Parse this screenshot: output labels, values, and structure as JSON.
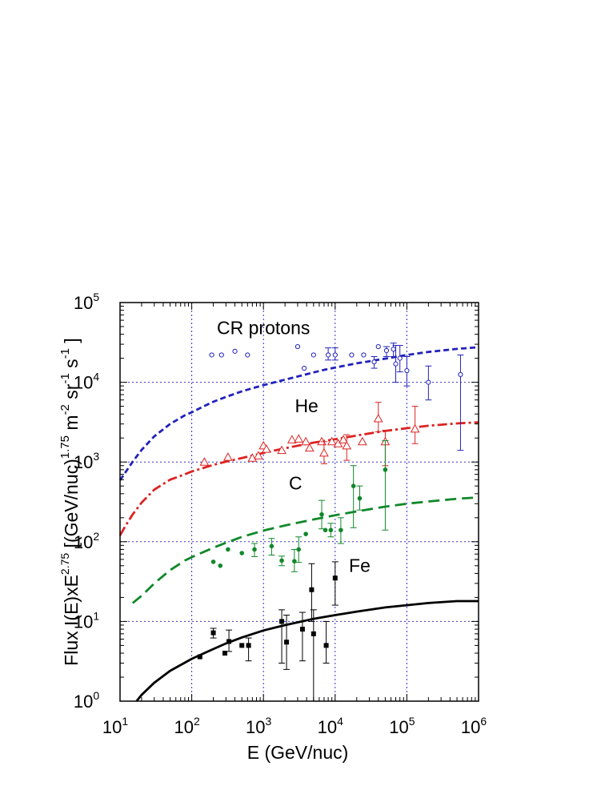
{
  "chart_data": {
    "type": "scatter",
    "x_scale": "log",
    "y_scale": "log",
    "xlim": [
      10,
      1000000
    ],
    "ylim": [
      1,
      100000
    ],
    "grid": true,
    "xlabel": "E (GeV/nuc)",
    "ylabel_parts": {
      "main": "Flux I(E)xE",
      "exp": "2.75",
      "bracket_open": " [(GeV/nuc)",
      "exp2": "1.75",
      "m": " m",
      "exp3": "-2",
      "sr": " sr",
      "exp4": "-1",
      "s": " s",
      "exp5": "-1",
      "bracket_close": " ]"
    },
    "x_ticks": [
      {
        "base": "10",
        "exp": "1"
      },
      {
        "base": "10",
        "exp": "2"
      },
      {
        "base": "10",
        "exp": "3"
      },
      {
        "base": "10",
        "exp": "4"
      },
      {
        "base": "10",
        "exp": "5"
      },
      {
        "base": "10",
        "exp": "6"
      }
    ],
    "y_ticks": [
      {
        "base": "10",
        "exp": "0"
      },
      {
        "base": "10",
        "exp": "1"
      },
      {
        "base": "10",
        "exp": "2"
      },
      {
        "base": "10",
        "exp": "3"
      },
      {
        "base": "10",
        "exp": "4"
      },
      {
        "base": "10",
        "exp": "5"
      }
    ],
    "annotations": [
      {
        "text": "CR protons",
        "series": "protons"
      },
      {
        "text": "He",
        "series": "helium"
      },
      {
        "text": "C",
        "series": "carbon"
      },
      {
        "text": "Fe",
        "series": "iron"
      }
    ],
    "series": [
      {
        "key": "protons",
        "color": "#2222bb",
        "marker": "open-circle",
        "curve_style": "short-dash",
        "curve": [
          [
            10,
            590
          ],
          [
            12,
            750
          ],
          [
            15,
            1010
          ],
          [
            20,
            1420
          ],
          [
            30,
            2100
          ],
          [
            50,
            3000
          ],
          [
            80,
            3850
          ],
          [
            100,
            4200
          ],
          [
            150,
            5050
          ],
          [
            200,
            5700
          ],
          [
            300,
            6550
          ],
          [
            500,
            7700
          ],
          [
            700,
            8400
          ],
          [
            1000,
            9200
          ],
          [
            2000,
            10800
          ],
          [
            3000,
            11800
          ],
          [
            5000,
            13300
          ],
          [
            7000,
            14300
          ],
          [
            10000,
            15300
          ],
          [
            20000,
            17300
          ],
          [
            50000,
            19800
          ],
          [
            100000,
            22000
          ],
          [
            200000,
            24000
          ],
          [
            500000,
            26200
          ],
          [
            1000000,
            27500
          ]
        ],
        "points": [
          {
            "x": 190,
            "y": 22000
          },
          {
            "x": 260,
            "y": 22000
          },
          {
            "x": 400,
            "y": 24500
          },
          {
            "x": 600,
            "y": 22000
          },
          {
            "x": 3000,
            "y": 28000
          },
          {
            "x": 3700,
            "y": 15000
          },
          {
            "x": 5000,
            "y": 22000
          },
          {
            "x": 8000,
            "y": 22000,
            "lo": 19000,
            "hi": 27000
          },
          {
            "x": 10000,
            "y": 22000,
            "lo": 19000,
            "hi": 27000
          },
          {
            "x": 17000,
            "y": 22000
          },
          {
            "x": 25000,
            "y": 22000
          },
          {
            "x": 35000,
            "y": 18000,
            "lo": 15000,
            "hi": 21000
          },
          {
            "x": 40000,
            "y": 28000
          },
          {
            "x": 52000,
            "y": 25000,
            "lo": 21000,
            "hi": 28000
          },
          {
            "x": 65000,
            "y": 26000,
            "lo": 21000,
            "hi": 31000
          },
          {
            "x": 70000,
            "y": 17000,
            "lo": 10000,
            "hi": 29000
          },
          {
            "x": 80000,
            "y": 20000,
            "lo": 13500,
            "hi": 29000
          },
          {
            "x": 100000,
            "y": 14000,
            "lo": 9000,
            "hi": 21000
          },
          {
            "x": 200000,
            "y": 10000,
            "lo": 6000,
            "hi": 16000
          },
          {
            "x": 560000,
            "y": 12500,
            "lo": 1400,
            "hi": 22000
          }
        ]
      },
      {
        "key": "helium",
        "color": "#dd2222",
        "marker": "open-triangle",
        "curve_style": "dash-dot",
        "curve": [
          [
            10,
            120
          ],
          [
            12,
            160
          ],
          [
            15,
            220
          ],
          [
            20,
            310
          ],
          [
            30,
            450
          ],
          [
            50,
            600
          ],
          [
            80,
            700
          ],
          [
            100,
            760
          ],
          [
            200,
            920
          ],
          [
            300,
            1010
          ],
          [
            500,
            1120
          ],
          [
            1000,
            1300
          ],
          [
            2000,
            1490
          ],
          [
            5000,
            1750
          ],
          [
            10000,
            1930
          ],
          [
            20000,
            2150
          ],
          [
            50000,
            2450
          ],
          [
            100000,
            2650
          ],
          [
            200000,
            2850
          ],
          [
            500000,
            3050
          ],
          [
            1000000,
            3150
          ]
        ],
        "points": [
          {
            "x": 150,
            "y": 1000
          },
          {
            "x": 320,
            "y": 1150
          },
          {
            "x": 700,
            "y": 1120
          },
          {
            "x": 850,
            "y": 1200
          },
          {
            "x": 1000,
            "y": 1600
          },
          {
            "x": 1100,
            "y": 1450
          },
          {
            "x": 1800,
            "y": 1400
          },
          {
            "x": 2500,
            "y": 1900
          },
          {
            "x": 3100,
            "y": 1950
          },
          {
            "x": 3900,
            "y": 1800
          },
          {
            "x": 4400,
            "y": 1500
          },
          {
            "x": 6500,
            "y": 1800
          },
          {
            "x": 7000,
            "y": 1300,
            "lo": 950,
            "hi": 1800
          },
          {
            "x": 9000,
            "y": 1800
          },
          {
            "x": 11000,
            "y": 1700
          },
          {
            "x": 13000,
            "y": 1900
          },
          {
            "x": 14500,
            "y": 1600,
            "lo": 1050,
            "hi": 2200
          },
          {
            "x": 24000,
            "y": 1800
          },
          {
            "x": 40000,
            "y": 3500,
            "lo": 2400,
            "hi": 5600
          },
          {
            "x": 50000,
            "y": 1800,
            "lo": 900,
            "hi": 2500
          },
          {
            "x": 130000,
            "y": 2600,
            "lo": 1700,
            "hi": 5000
          }
        ]
      },
      {
        "key": "carbon",
        "color": "#11882a",
        "marker": "filled-circle",
        "curve_style": "long-dash",
        "curve": [
          [
            15,
            17
          ],
          [
            20,
            21
          ],
          [
            30,
            30
          ],
          [
            50,
            44
          ],
          [
            80,
            58
          ],
          [
            100,
            64
          ],
          [
            200,
            84
          ],
          [
            300,
            97
          ],
          [
            500,
            115
          ],
          [
            1000,
            138
          ],
          [
            2000,
            160
          ],
          [
            5000,
            190
          ],
          [
            10000,
            215
          ],
          [
            20000,
            240
          ],
          [
            50000,
            275
          ],
          [
            100000,
            300
          ],
          [
            200000,
            320
          ],
          [
            500000,
            345
          ],
          [
            1000000,
            360
          ]
        ],
        "points": [
          {
            "x": 200,
            "y": 56
          },
          {
            "x": 250,
            "y": 50
          },
          {
            "x": 320,
            "y": 80
          },
          {
            "x": 500,
            "y": 72
          },
          {
            "x": 750,
            "y": 80,
            "lo": 65,
            "hi": 95
          },
          {
            "x": 1300,
            "y": 88,
            "lo": 68,
            "hi": 110
          },
          {
            "x": 1800,
            "y": 58,
            "lo": 50,
            "hi": 66
          },
          {
            "x": 2700,
            "y": 57,
            "lo": 42,
            "hi": 80
          },
          {
            "x": 3100,
            "y": 80,
            "lo": 55,
            "hi": 115
          },
          {
            "x": 3900,
            "y": 125
          },
          {
            "x": 6500,
            "y": 220,
            "lo": 145,
            "hi": 330
          },
          {
            "x": 7300,
            "y": 140
          },
          {
            "x": 8700,
            "y": 140,
            "lo": 115,
            "hi": 170
          },
          {
            "x": 12000,
            "y": 140,
            "lo": 95,
            "hi": 200
          },
          {
            "x": 18000,
            "y": 500,
            "lo": 150,
            "hi": 900
          },
          {
            "x": 22000,
            "y": 350,
            "lo": 250,
            "hi": 500
          },
          {
            "x": 50000,
            "y": 800,
            "lo": 140,
            "hi": 1850
          }
        ]
      },
      {
        "key": "iron",
        "color": "#000000",
        "marker": "filled-square",
        "curve_style": "solid",
        "curve": [
          [
            17,
            1
          ],
          [
            20,
            1.2
          ],
          [
            30,
            1.7
          ],
          [
            50,
            2.4
          ],
          [
            100,
            3.4
          ],
          [
            200,
            4.5
          ],
          [
            300,
            5.3
          ],
          [
            500,
            6.3
          ],
          [
            1000,
            7.7
          ],
          [
            2000,
            9.0
          ],
          [
            5000,
            10.8
          ],
          [
            10000,
            12.0
          ],
          [
            20000,
            13.3
          ],
          [
            50000,
            15.0
          ],
          [
            100000,
            16.0
          ],
          [
            200000,
            17.0
          ],
          [
            500000,
            18.0
          ],
          [
            1000000,
            18.0
          ]
        ],
        "points": [
          {
            "x": 130,
            "y": 3.6
          },
          {
            "x": 200,
            "y": 7.2,
            "lo": 6.2,
            "hi": 8.2
          },
          {
            "x": 290,
            "y": 4
          },
          {
            "x": 330,
            "y": 5.6,
            "lo": 4.2,
            "hi": 7.8
          },
          {
            "x": 500,
            "y": 5
          },
          {
            "x": 620,
            "y": 5,
            "lo": 3.2,
            "hi": 6.2
          },
          {
            "x": 1800,
            "y": 10,
            "lo": 3,
            "hi": 14
          },
          {
            "x": 2100,
            "y": 5.5,
            "lo": 2.5,
            "hi": 12
          },
          {
            "x": 3500,
            "y": 8,
            "lo": 3.2,
            "hi": 13
          },
          {
            "x": 4700,
            "y": 25,
            "lo": 10,
            "hi": 53
          },
          {
            "x": 5000,
            "y": 7,
            "lo": 1,
            "hi": 14
          },
          {
            "x": 7500,
            "y": 5,
            "lo": 3,
            "hi": 10
          },
          {
            "x": 10000,
            "y": 35,
            "lo": 16,
            "hi": 56
          }
        ]
      }
    ]
  }
}
